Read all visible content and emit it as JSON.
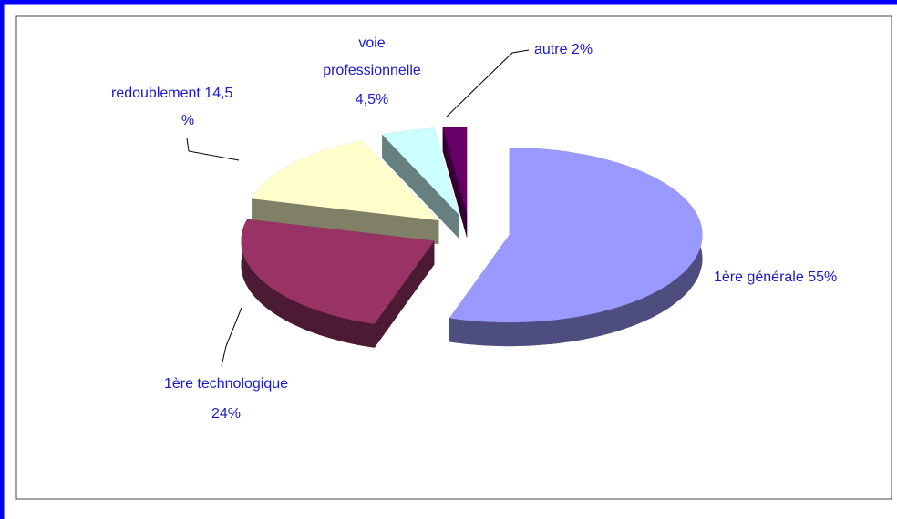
{
  "chart_data": {
    "type": "pie",
    "categories": [
      "1ère générale",
      "1ère technologique",
      "redoublement",
      "voie professionnelle",
      "autre"
    ],
    "values": [
      55,
      24,
      14.5,
      4.5,
      2
    ],
    "value_labels": [
      "55%",
      "24%",
      "14,5 %",
      "4,5%",
      "2%"
    ],
    "colors": [
      "#9999ff",
      "#993366",
      "#ffffcc",
      "#ccffff",
      "#660066"
    ]
  }
}
